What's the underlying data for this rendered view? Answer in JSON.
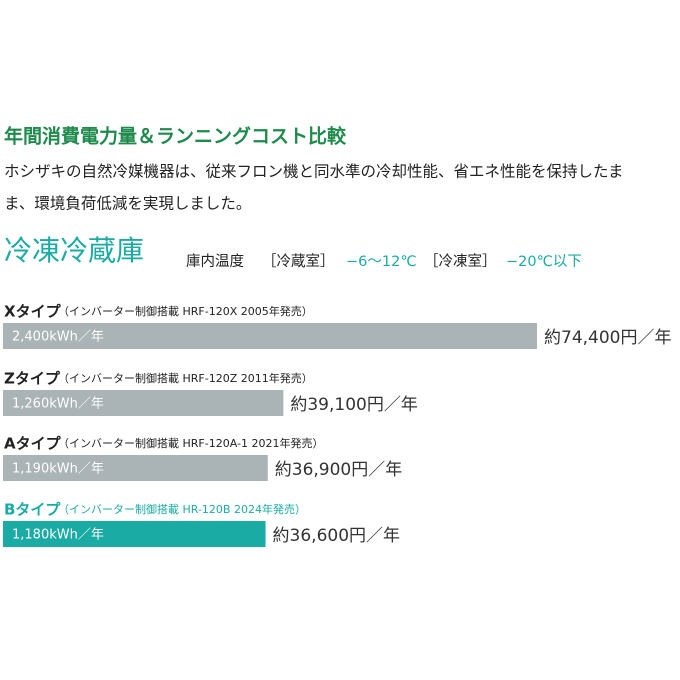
{
  "chart_data": {
    "type": "hbar",
    "title": "年間消費電力量＆ランニングコスト比較",
    "description_lines": [
      "ホシザキの自然冷媒機器は、従来フロン機と同水準の冷却性能、省エネ性能を保持したま",
      "ま、環境負荷低減を実現しました。"
    ],
    "subtitle": "冷凍冷蔵庫",
    "temperature": {
      "label": "庫内温度",
      "fridge_label": "［冷蔵室］",
      "fridge_range": "−6〜12℃",
      "freezer_label": "［冷凍室］",
      "freezer_range": "−20℃以下"
    },
    "categories": [
      "Xタイプ",
      "Zタイプ",
      "Aタイプ",
      "Bタイプ"
    ],
    "category_notes": [
      "（インバーター制御搭載 HRF-120X 2005年発売）",
      "（インバーター制御搭載 HRF-120Z 2011年発売）",
      "（インバーター制御搭載 HRF-120A-1 2021年発売）",
      "（インバーター制御搭載 HR-120B 2024年発売）"
    ],
    "values": [
      2400,
      1260,
      1190,
      1180
    ],
    "value_labels": [
      "2,400kWh／年",
      "1,260kWh／年",
      "1,190kWh／年",
      "1,180kWh／年"
    ],
    "cost_labels": [
      "約74,400円／年",
      "約39,100円／年",
      "約36,900円／年",
      "約36,600円／年"
    ],
    "colors": [
      "#aab3b6",
      "#aab3b6",
      "#aab3b6",
      "#1aaca4"
    ]
  }
}
